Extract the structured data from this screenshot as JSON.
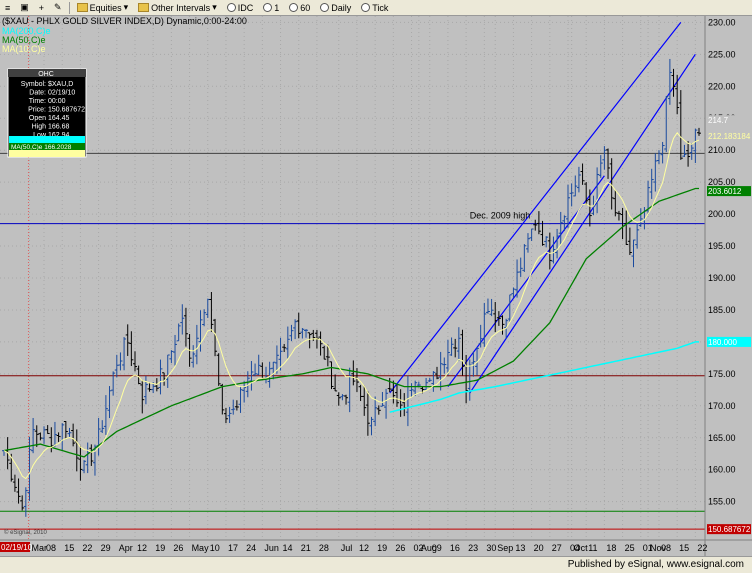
{
  "toolbar": {
    "items": [
      {
        "label": "Equities",
        "icon": "folder-icon"
      },
      {
        "label": "Other Intervals",
        "icon": "folder-icon"
      },
      {
        "label": "IDC",
        "icon": "radio-icon"
      },
      {
        "label": "1",
        "icon": "radio-icon"
      },
      {
        "label": "60",
        "icon": "radio-icon"
      },
      {
        "label": "Daily",
        "icon": "radio-icon"
      },
      {
        "label": "Tick",
        "icon": "radio-icon"
      }
    ]
  },
  "chart_data": {
    "type": "ohlc",
    "title": "($XAU - PHLX GOLD SILVER INDEX,D) Dynamic,0:00-24:00",
    "legend": [
      {
        "label": "MA(200,C)e",
        "color": "#00ffff"
      },
      {
        "label": "MA(50,C)e",
        "color": "#008000"
      },
      {
        "label": "MA(10,C)e",
        "color": "#ffffa0"
      }
    ],
    "ylim": [
      149,
      231
    ],
    "yticks": [
      155,
      160,
      165,
      170,
      175,
      180,
      185,
      190,
      195,
      200,
      205,
      210,
      215,
      220,
      225,
      230
    ],
    "x_labels": [
      {
        "d": "Mar",
        "i": 7
      },
      {
        "d": "08",
        "i": 11
      },
      {
        "d": "15",
        "i": 16
      },
      {
        "d": "22",
        "i": 21
      },
      {
        "d": "29",
        "i": 26
      },
      {
        "d": "Apr",
        "i": 31
      },
      {
        "d": "12",
        "i": 36
      },
      {
        "d": "19",
        "i": 41
      },
      {
        "d": "26",
        "i": 46
      },
      {
        "d": "May",
        "i": 51
      },
      {
        "d": "10",
        "i": 56
      },
      {
        "d": "17",
        "i": 61
      },
      {
        "d": "24",
        "i": 66
      },
      {
        "d": "Jun",
        "i": 71
      },
      {
        "d": "14",
        "i": 76
      },
      {
        "d": "21",
        "i": 81
      },
      {
        "d": "28",
        "i": 86
      },
      {
        "d": "Jul",
        "i": 92
      },
      {
        "d": "12",
        "i": 97
      },
      {
        "d": "19",
        "i": 102
      },
      {
        "d": "26",
        "i": 107
      },
      {
        "d": "02",
        "i": 112
      },
      {
        "d": "Aug",
        "i": 114
      },
      {
        "d": "09",
        "i": 117
      },
      {
        "d": "16",
        "i": 122
      },
      {
        "d": "23",
        "i": 127
      },
      {
        "d": "30",
        "i": 132
      },
      {
        "d": "Sep",
        "i": 135
      },
      {
        "d": "13",
        "i": 140
      },
      {
        "d": "20",
        "i": 145
      },
      {
        "d": "27",
        "i": 150
      },
      {
        "d": "04",
        "i": 155
      },
      {
        "d": "Oct",
        "i": 156
      },
      {
        "d": "11",
        "i": 160
      },
      {
        "d": "18",
        "i": 165
      },
      {
        "d": "25",
        "i": 170
      },
      {
        "d": "01",
        "i": 175
      },
      {
        "d": "Nov",
        "i": 177
      },
      {
        "d": "08",
        "i": 180
      },
      {
        "d": "15",
        "i": 185
      },
      {
        "d": "22",
        "i": 190
      }
    ],
    "price_anchors": [
      [
        0,
        163
      ],
      [
        3,
        158
      ],
      [
        5,
        154
      ],
      [
        8,
        166
      ],
      [
        13,
        165
      ],
      [
        17,
        167
      ],
      [
        22,
        160
      ],
      [
        26,
        165
      ],
      [
        31,
        177
      ],
      [
        34,
        180
      ],
      [
        38,
        172
      ],
      [
        44,
        175
      ],
      [
        49,
        184
      ],
      [
        51,
        177
      ],
      [
        56,
        188
      ],
      [
        60,
        168
      ],
      [
        64,
        170
      ],
      [
        68,
        176
      ],
      [
        73,
        175
      ],
      [
        77,
        178
      ],
      [
        80,
        183
      ],
      [
        84,
        182
      ],
      [
        88,
        178
      ],
      [
        92,
        171
      ],
      [
        96,
        174
      ],
      [
        101,
        167
      ],
      [
        105,
        173
      ],
      [
        109,
        169
      ],
      [
        113,
        175
      ],
      [
        117,
        173
      ],
      [
        122,
        179
      ],
      [
        125,
        181
      ],
      [
        127,
        173
      ],
      [
        129,
        178
      ],
      [
        133,
        186
      ],
      [
        137,
        183
      ],
      [
        142,
        192
      ],
      [
        146,
        199
      ],
      [
        150,
        194
      ],
      [
        154,
        201
      ],
      [
        158,
        206
      ],
      [
        161,
        200
      ],
      [
        165,
        210
      ],
      [
        167,
        202
      ],
      [
        170,
        197
      ],
      [
        172,
        194
      ],
      [
        175,
        198
      ],
      [
        178,
        205
      ],
      [
        181,
        212
      ],
      [
        183,
        222
      ],
      [
        185,
        217
      ],
      [
        186,
        208
      ],
      [
        188,
        209
      ],
      [
        190,
        212
      ]
    ],
    "ma200_anchors": [
      [
        106,
        169
      ],
      [
        120,
        171
      ],
      [
        125,
        172
      ],
      [
        135,
        173
      ],
      [
        160,
        176
      ],
      [
        185,
        179
      ],
      [
        190,
        180
      ]
    ],
    "ma50_anchors": [
      [
        0,
        163
      ],
      [
        10,
        164
      ],
      [
        22,
        162
      ],
      [
        31,
        166
      ],
      [
        46,
        170
      ],
      [
        60,
        173
      ],
      [
        70,
        174
      ],
      [
        82,
        175
      ],
      [
        90,
        176
      ],
      [
        100,
        175
      ],
      [
        110,
        173
      ],
      [
        120,
        173
      ],
      [
        130,
        174
      ],
      [
        140,
        177
      ],
      [
        150,
        183
      ],
      [
        160,
        193
      ],
      [
        170,
        198
      ],
      [
        180,
        202
      ],
      [
        190,
        204
      ]
    ],
    "levels": [
      {
        "y": 209.5,
        "color": "#404040"
      },
      {
        "y": 198.5,
        "color": "#0000c0"
      },
      {
        "y": 174.7,
        "color": "#800000"
      },
      {
        "y": 153.5,
        "color": "#008000"
      },
      {
        "y": 150.7,
        "color": "#c00000"
      }
    ],
    "channel": [
      {
        "i1": 106,
        "y1": 172,
        "i2": 186,
        "y2": 230
      },
      {
        "i1": 128,
        "y1": 172,
        "i2": 190,
        "y2": 225
      },
      {
        "i1": 122,
        "y1": 173,
        "i2": 165,
        "y2": 206
      }
    ],
    "annotation": "Dec. 2009 high",
    "price_tags": [
      {
        "label": "214.7",
        "y": 214.7,
        "bg": "#c0c0c0",
        "fg": "#ffffff"
      },
      {
        "label": "212.183184",
        "y": 212.2,
        "bg": "#c0c0c0",
        "fg": "#ffffa0"
      },
      {
        "label": "203.6012",
        "y": 203.6,
        "bg": "#008000",
        "fg": "#ffffff"
      },
      {
        "label": "180.000",
        "y": 180.0,
        "bg": "#00ffff",
        "fg": "#ffffff"
      },
      {
        "label": "150.687672",
        "y": 150.7,
        "bg": "#c00000",
        "fg": "#ffffff"
      }
    ],
    "date_tag": "02/19/10",
    "watermark": "© eSignal, 2010",
    "data_window": {
      "header": "OHC",
      "rows": [
        {
          "k": "Symbol:",
          "v": "$XAU,D"
        },
        {
          "k": "Date:",
          "v": "02/19/10"
        },
        {
          "k": "Time:",
          "v": "00:00"
        },
        {
          "k": "Price:",
          "v": "150.687672"
        },
        {
          "k": "Open",
          "v": "164.45"
        },
        {
          "k": "High",
          "v": "166.68"
        },
        {
          "k": "Low",
          "v": "162.94"
        },
        {
          "k": "Close",
          "v": "164.44"
        }
      ],
      "ma_rows": [
        {
          "text": "MA(200,C)e",
          "color": "#00ffff",
          "fg": "#00ffff"
        },
        {
          "text": "MA(50,C)e 166.2028",
          "color": "#008000",
          "fg": "#ffffff"
        },
        {
          "text": "",
          "color": "#ffffa0",
          "fg": "#000000"
        }
      ]
    }
  },
  "status": {
    "text": "Published by eSignal, www.esignal.com"
  }
}
